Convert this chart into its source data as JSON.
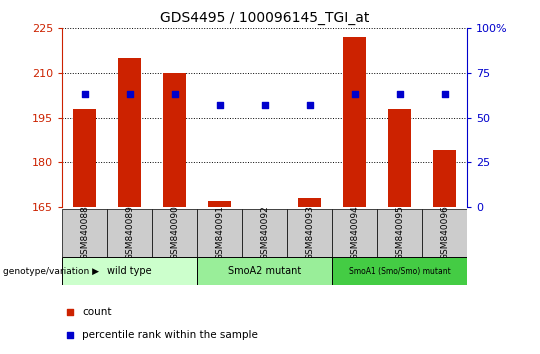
{
  "title": "GDS4495 / 100096145_TGI_at",
  "samples": [
    "GSM840088",
    "GSM840089",
    "GSM840090",
    "GSM840091",
    "GSM840092",
    "GSM840093",
    "GSM840094",
    "GSM840095",
    "GSM840096"
  ],
  "counts": [
    198,
    215,
    210,
    167,
    165,
    168,
    222,
    198,
    184
  ],
  "percentiles": [
    63,
    63,
    63,
    57,
    57,
    57,
    63,
    63,
    63
  ],
  "ylim_left": [
    165,
    225
  ],
  "yticks_left": [
    165,
    180,
    195,
    210,
    225
  ],
  "ylim_right": [
    0,
    100
  ],
  "yticks_right": [
    0,
    25,
    50,
    75,
    100
  ],
  "bar_color": "#cc2200",
  "dot_color": "#0000cc",
  "groups": [
    {
      "label": "wild type",
      "start": 0,
      "end": 3,
      "color": "#ccffcc"
    },
    {
      "label": "SmoA2 mutant",
      "start": 3,
      "end": 6,
      "color": "#99ee99"
    },
    {
      "label": "SmoA1 (Smo/Smo) mutant",
      "start": 6,
      "end": 9,
      "color": "#44cc44"
    }
  ],
  "legend_count_color": "#cc2200",
  "legend_dot_color": "#0000cc",
  "grid_color": "black",
  "tick_label_color_left": "#cc2200",
  "tick_label_color_right": "#0000cc",
  "bar_width": 0.5,
  "genotype_label": "genotype/variation",
  "title_fontsize": 10,
  "tick_box_color": "#cccccc",
  "group1_color": "#ccffcc",
  "group2_color": "#99ee99",
  "group3_color": "#44cc44"
}
